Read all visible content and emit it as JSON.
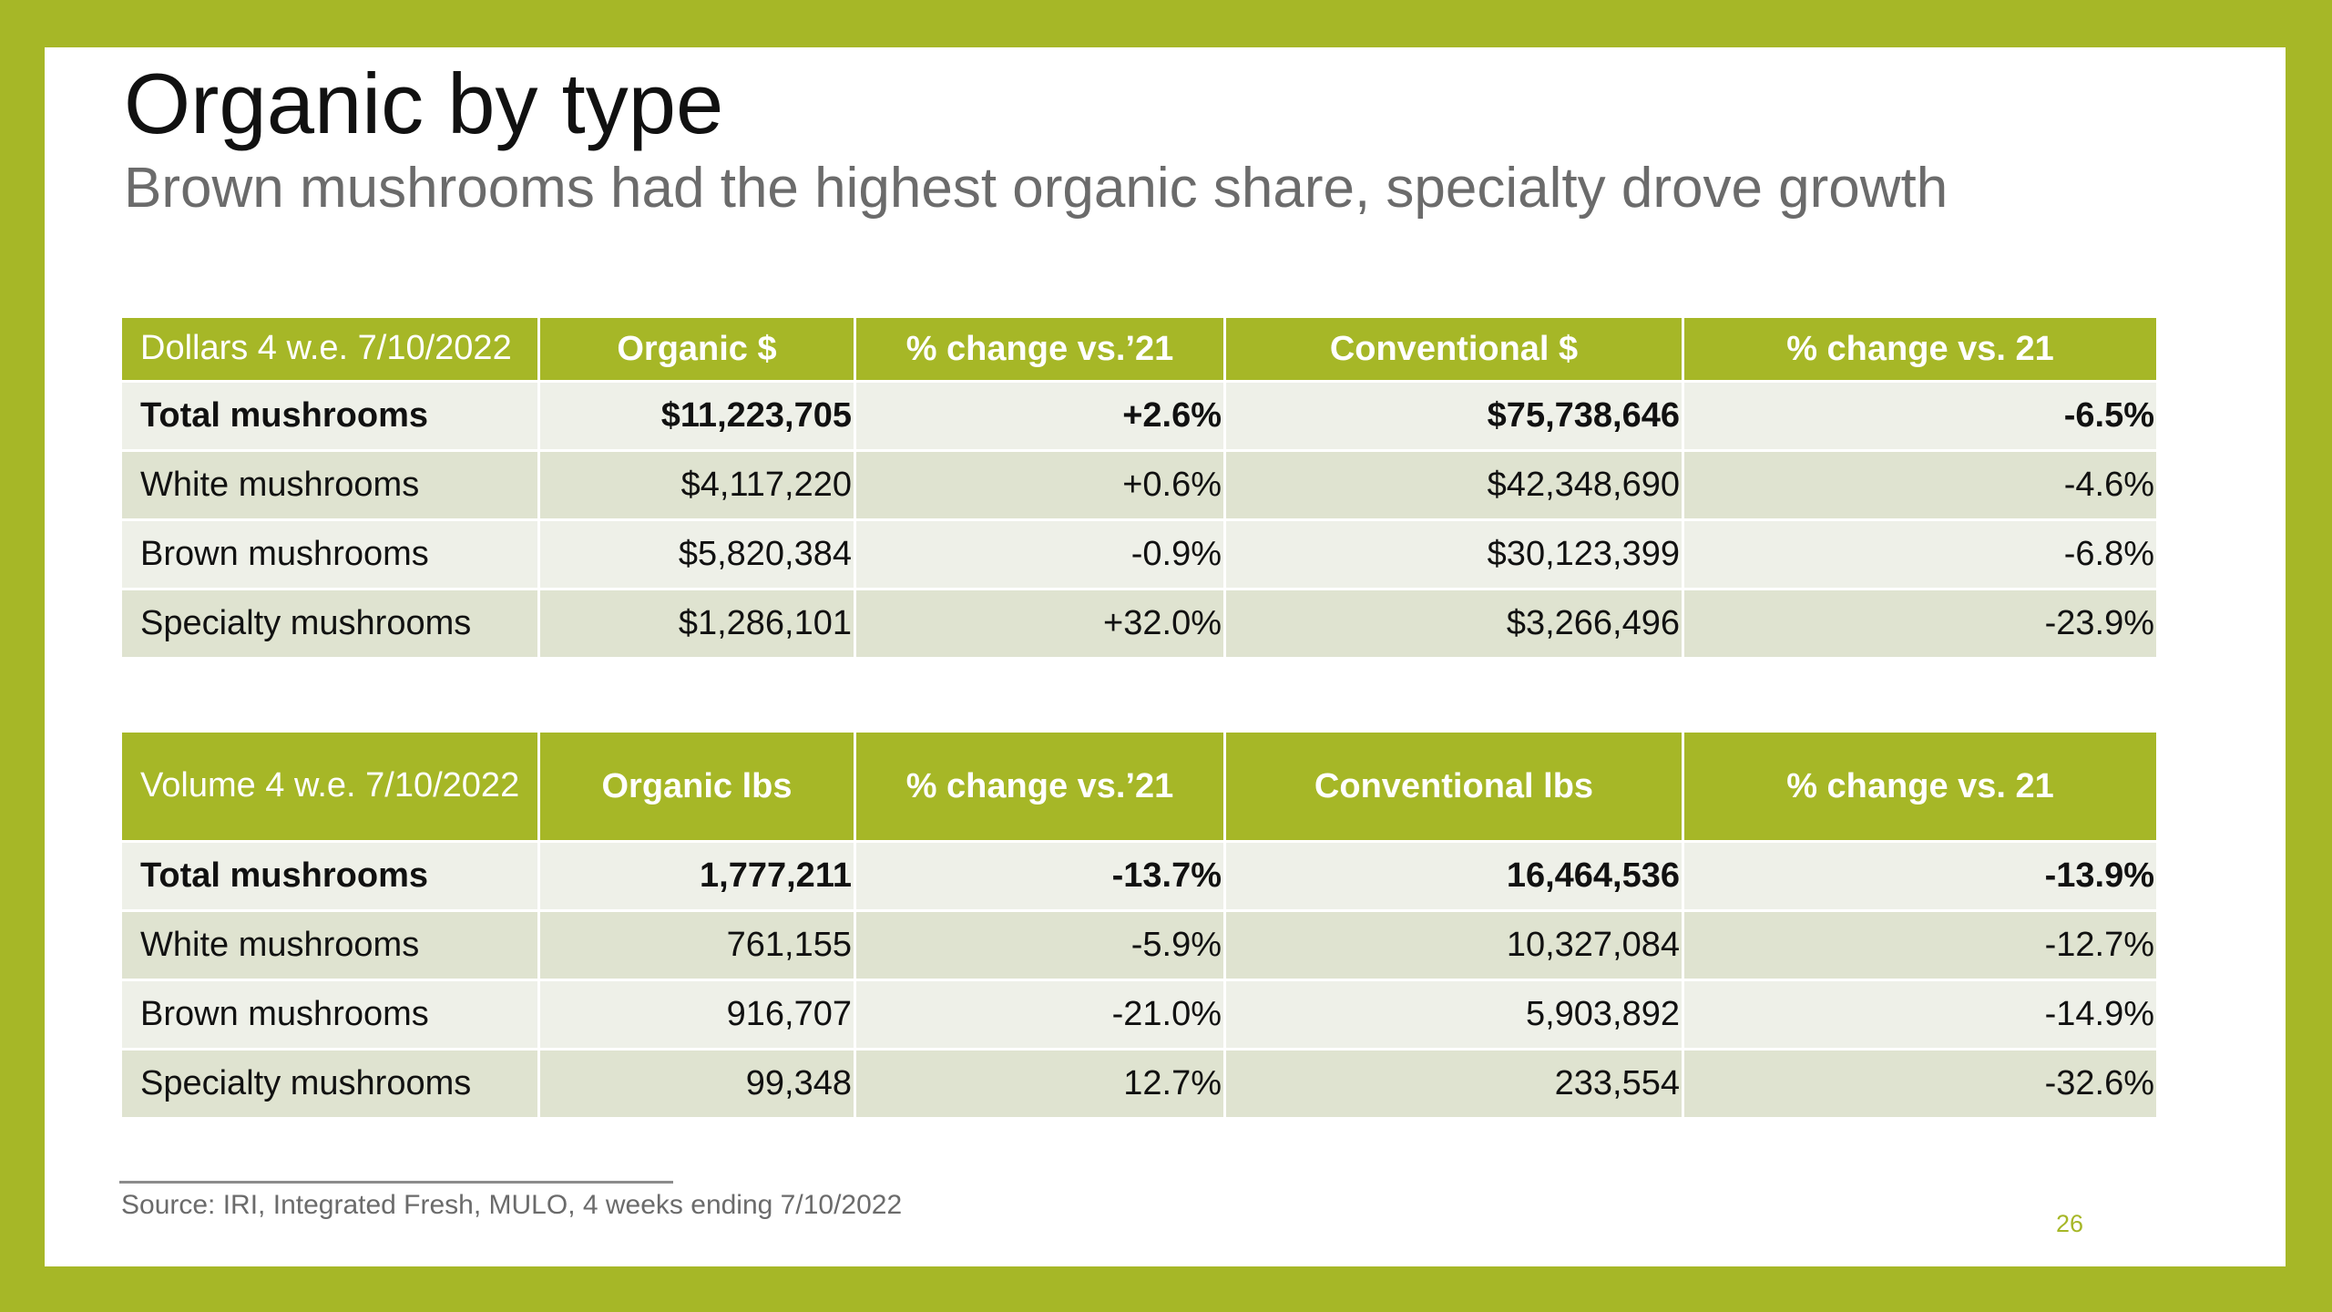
{
  "slide": {
    "title": "Organic by type",
    "subtitle": "Brown mushrooms had the highest organic share, specialty drove growth",
    "source": "Source: IRI, Integrated Fresh, MULO, 4 weeks ending 7/10/2022",
    "page_number": "26"
  },
  "dollars_table": {
    "headers": [
      "Dollars 4 w.e. 7/10/2022",
      "Organic $",
      "% change vs.’21",
      "Conventional $",
      "% change vs. 21"
    ],
    "rows": [
      [
        "Total mushrooms",
        "$11,223,705",
        "+2.6%",
        "$75,738,646",
        "-6.5%"
      ],
      [
        "White mushrooms",
        "$4,117,220",
        "+0.6%",
        "$42,348,690",
        "-4.6%"
      ],
      [
        "Brown mushrooms",
        "$5,820,384",
        "-0.9%",
        "$30,123,399",
        "-6.8%"
      ],
      [
        "Specialty mushrooms",
        "$1,286,101",
        "+32.0%",
        "$3,266,496",
        "-23.9%"
      ]
    ]
  },
  "volume_table": {
    "headers": [
      "Volume 4 w.e. 7/10/2022",
      "Organic lbs",
      "% change vs.’21",
      "Conventional lbs",
      "% change vs. 21"
    ],
    "rows": [
      [
        "Total mushrooms",
        "1,777,211",
        "-13.7%",
        "16,464,536",
        "-13.9%"
      ],
      [
        "White mushrooms",
        "761,155",
        "-5.9%",
        "10,327,084",
        "-12.7%"
      ],
      [
        "Brown mushrooms",
        "916,707",
        "-21.0%",
        "5,903,892",
        "-14.9%"
      ],
      [
        "Specialty mushrooms",
        "99,348",
        "12.7%",
        "233,554",
        "-32.6%"
      ]
    ]
  },
  "colors": {
    "accent": "#a6b727",
    "row_light": "#eef0e8",
    "row_dark": "#dfe3d0",
    "title_text": "#111111",
    "subtitle_text": "#6b6b6b"
  }
}
